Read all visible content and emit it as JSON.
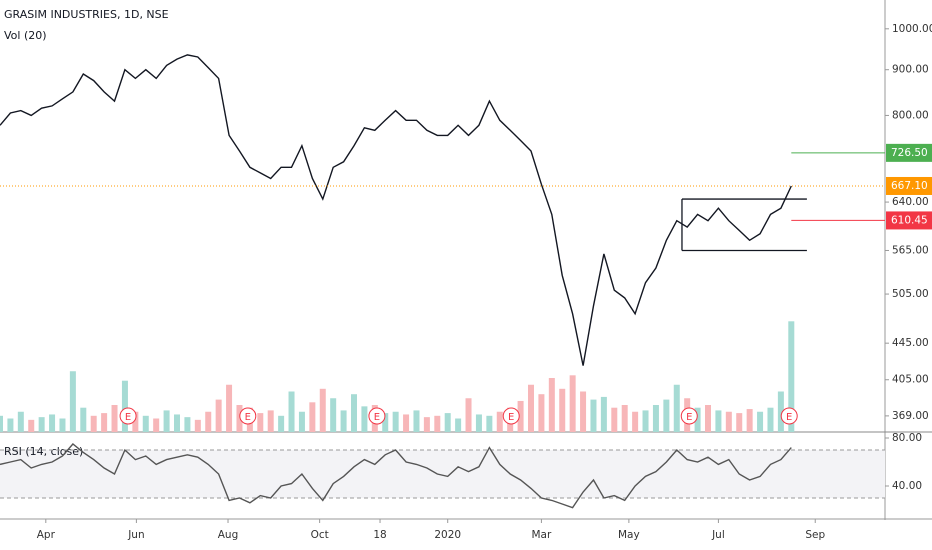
{
  "chart_data": [
    {
      "type": "line",
      "title": "GRASIM INDUSTRIES, 1D, NSE",
      "log_scale": true,
      "xlim": [
        0,
        85
      ],
      "ylim": [
        354,
        1077
      ],
      "y2lim": [
        0,
        32
      ],
      "x": [
        0,
        1,
        2,
        3,
        4,
        5,
        6,
        7,
        8,
        9,
        10,
        11,
        12,
        13,
        14,
        15,
        16,
        17,
        18,
        19,
        20,
        21,
        22,
        23,
        24,
        25,
        26,
        27,
        28,
        29,
        30,
        31,
        32,
        33,
        34,
        35,
        36,
        37,
        38,
        39,
        40,
        41,
        42,
        43,
        44,
        45,
        46,
        47,
        48,
        49,
        50,
        51,
        52,
        53,
        54,
        55,
        56,
        57,
        58,
        59,
        60,
        61,
        62,
        63,
        64,
        65,
        66,
        67,
        68,
        69,
        70,
        71,
        72,
        73,
        74,
        75,
        76
      ],
      "series": [
        {
          "color": "#131722",
          "values": [
            780,
            805,
            810,
            800,
            815,
            820,
            835,
            850,
            890,
            875,
            850,
            830,
            900,
            880,
            900,
            880,
            910,
            925,
            935,
            930,
            905,
            880,
            760,
            730,
            700,
            690,
            680,
            700,
            700,
            740,
            680,
            645,
            700,
            710,
            740,
            775,
            770,
            790,
            810,
            790,
            790,
            770,
            760,
            760,
            780,
            760,
            780,
            830,
            790,
            770,
            750,
            730,
            670,
            620,
            530,
            480,
            420,
            490,
            560,
            510,
            500,
            480,
            520,
            540,
            580,
            610,
            600,
            620,
            610,
            630,
            610,
            595,
            580,
            590,
            620,
            630,
            667.1
          ]
        },
        {
          "name": "Vol (20)",
          "type": "bar",
          "axis": "y2",
          "up_color": "#a6dbd4",
          "down_color": "#f7b6b8",
          "values": [
            1.2,
            1.0,
            1.5,
            0.9,
            1.1,
            1.3,
            1.0,
            4.5,
            1.8,
            1.2,
            1.4,
            2.0,
            3.8,
            1.5,
            1.2,
            1.0,
            1.6,
            1.3,
            1.1,
            0.9,
            1.5,
            2.4,
            3.5,
            2.0,
            1.8,
            1.4,
            1.6,
            1.2,
            3.0,
            1.5,
            2.2,
            3.2,
            2.5,
            1.6,
            2.8,
            1.9,
            2.0,
            1.4,
            1.5,
            1.3,
            1.6,
            1.1,
            1.2,
            1.4,
            1.0,
            2.5,
            1.3,
            1.2,
            1.5,
            1.8,
            2.3,
            3.5,
            2.8,
            4.0,
            3.2,
            4.2,
            3.0,
            2.4,
            2.6,
            1.8,
            2.0,
            1.5,
            1.6,
            2.0,
            2.4,
            3.5,
            2.5,
            1.8,
            2.0,
            1.6,
            1.5,
            1.4,
            1.7,
            1.5,
            1.8,
            3.0,
            8.2
          ]
        }
      ],
      "yticks": [
        {
          "value": 1000,
          "label": "1000.00"
        },
        {
          "value": 900,
          "label": "900.00"
        },
        {
          "value": 800,
          "label": "800.00"
        },
        {
          "value": 640,
          "label": "640.00"
        },
        {
          "value": 565,
          "label": "565.00"
        },
        {
          "value": 505,
          "label": "505.00"
        },
        {
          "value": 445,
          "label": "445.00"
        },
        {
          "value": 405,
          "label": "405.00"
        },
        {
          "value": 369,
          "label": "369.00"
        }
      ],
      "price_lines": [
        {
          "value": 726.5,
          "label": "726.50",
          "color": "#4caf50"
        },
        {
          "value": 667.1,
          "label": "667.10",
          "color": "#ff9800"
        },
        {
          "value": 610.45,
          "label": "610.45",
          "color": "#f23645"
        }
      ],
      "range_box": {
        "top": 645,
        "bottom": 565,
        "x": [
          65.5,
          77.5
        ]
      },
      "events": {
        "label": "E",
        "x": [
          12.3,
          23.8,
          36.2,
          49.1,
          66.2,
          75.8
        ]
      },
      "xticks": [
        {
          "value": 4.4,
          "label": "Apr"
        },
        {
          "value": 13.1,
          "label": "Jun"
        },
        {
          "value": 21.9,
          "label": "Aug"
        },
        {
          "value": 30.7,
          "label": "Oct"
        },
        {
          "value": 36.5,
          "label": "18"
        },
        {
          "value": 43.0,
          "label": "2020"
        },
        {
          "value": 52.0,
          "label": "Mar"
        },
        {
          "value": 60.4,
          "label": "May"
        },
        {
          "value": 69.0,
          "label": "Jul"
        },
        {
          "value": 78.3,
          "label": "Sep"
        }
      ]
    },
    {
      "type": "line",
      "title": "RSI (14, close)",
      "xlim": [
        0,
        85
      ],
      "ylim": [
        15,
        85
      ],
      "bands": [
        30,
        70
      ],
      "x": [
        0,
        1,
        2,
        3,
        4,
        5,
        6,
        7,
        8,
        9,
        10,
        11,
        12,
        13,
        14,
        15,
        16,
        17,
        18,
        19,
        20,
        21,
        22,
        23,
        24,
        25,
        26,
        27,
        28,
        29,
        30,
        31,
        32,
        33,
        34,
        35,
        36,
        37,
        38,
        39,
        40,
        41,
        42,
        43,
        44,
        45,
        46,
        47,
        48,
        49,
        50,
        51,
        52,
        53,
        54,
        55,
        56,
        57,
        58,
        59,
        60,
        61,
        62,
        63,
        64,
        65,
        66,
        67,
        68,
        69,
        70,
        71,
        72,
        73,
        74,
        75,
        76
      ],
      "series": [
        {
          "color": "#555555",
          "values": [
            58,
            60,
            62,
            55,
            58,
            60,
            65,
            75,
            68,
            62,
            55,
            50,
            70,
            62,
            65,
            58,
            62,
            64,
            66,
            64,
            58,
            50,
            28,
            30,
            26,
            32,
            30,
            40,
            42,
            50,
            38,
            28,
            42,
            48,
            56,
            62,
            58,
            66,
            70,
            60,
            58,
            55,
            50,
            48,
            56,
            52,
            56,
            72,
            58,
            50,
            45,
            38,
            30,
            28,
            25,
            22,
            35,
            45,
            30,
            32,
            28,
            40,
            48,
            52,
            60,
            70,
            62,
            60,
            64,
            58,
            62,
            50,
            45,
            48,
            58,
            62,
            72
          ]
        }
      ],
      "yticks": [
        {
          "value": 80,
          "label": "80.00"
        },
        {
          "value": 40,
          "label": "40.00"
        }
      ]
    }
  ]
}
